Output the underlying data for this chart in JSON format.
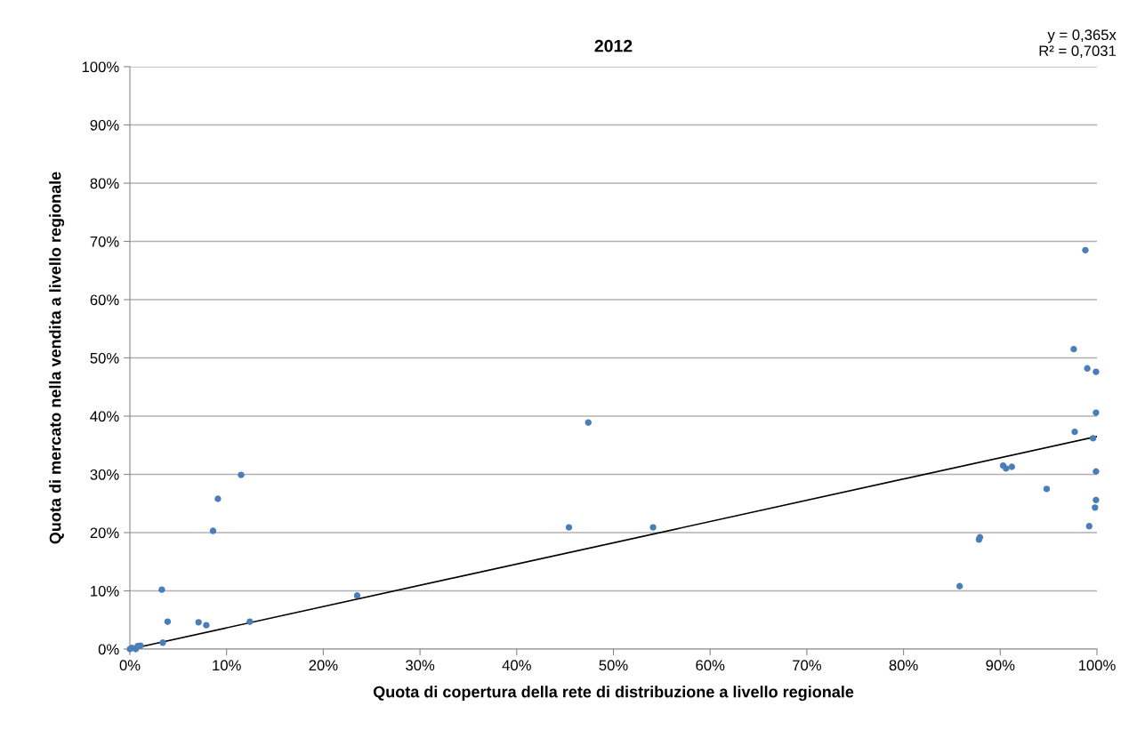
{
  "chart_data": {
    "type": "scatter",
    "title": "2012",
    "xlabel": "Quota di copertura della rete di distribuzione a livello regionale",
    "ylabel": "Quota di mercato nella vendita a livello regionale",
    "series": [
      {
        "color": "#4a7ebb",
        "marker": "circle",
        "x": [
          0,
          0.2,
          0.6,
          0.8,
          1.1,
          3.3,
          3.4,
          3.9,
          7.1,
          7.9,
          8.6,
          9.1,
          11.5,
          12.4,
          23.5,
          45.4,
          47.4,
          54.1,
          85.8,
          87.8,
          87.9,
          90.3,
          90.6,
          91.2,
          94.8,
          97.6,
          97.7,
          98.8,
          99.0,
          99.2,
          99.6,
          99.9,
          99.9,
          99.9,
          99.9,
          99.8
        ],
        "values": [
          0,
          0.2,
          0,
          0.5,
          0.6,
          10.2,
          1.1,
          4.7,
          4.6,
          4.1,
          20.3,
          25.8,
          29.9,
          4.7,
          9.2,
          20.9,
          38.9,
          20.9,
          10.8,
          18.8,
          19.2,
          31.5,
          31.0,
          31.3,
          27.5,
          51.5,
          37.3,
          68.5,
          48.2,
          21.1,
          36.2,
          47.6,
          40.6,
          30.5,
          25.6,
          24.3
        ]
      },
      {
        "type": "line",
        "color": "#000000",
        "marker": "none",
        "line_style": "solid",
        "x": [
          0,
          100
        ],
        "values": [
          0,
          36.5
        ]
      }
    ],
    "annotations": [
      "y = 0,365x\nR² = 0,7031"
    ],
    "xlim": [
      0,
      100
    ],
    "ylim": [
      0,
      100
    ],
    "xticks": [
      {
        "value": 0,
        "label": "0%"
      },
      {
        "value": 10,
        "label": "10%"
      },
      {
        "value": 20,
        "label": "20%"
      },
      {
        "value": 30,
        "label": "30%"
      },
      {
        "value": 40,
        "label": "40%"
      },
      {
        "value": 50,
        "label": "50%"
      },
      {
        "value": 60,
        "label": "60%"
      },
      {
        "value": 70,
        "label": "70%"
      },
      {
        "value": 80,
        "label": "80%"
      },
      {
        "value": 90,
        "label": "90%"
      },
      {
        "value": 100,
        "label": "100%"
      }
    ],
    "yticks": [
      {
        "value": 0,
        "label": "0%"
      },
      {
        "value": 10,
        "label": "10%"
      },
      {
        "value": 20,
        "label": "20%"
      },
      {
        "value": 30,
        "label": "30%"
      },
      {
        "value": 40,
        "label": "40%"
      },
      {
        "value": 50,
        "label": "50%"
      },
      {
        "value": 60,
        "label": "60%"
      },
      {
        "value": 70,
        "label": "70%"
      },
      {
        "value": 80,
        "label": "80%"
      },
      {
        "value": 90,
        "label": "90%"
      },
      {
        "value": 100,
        "label": "100%"
      }
    ],
    "grid": "y",
    "legend": false
  }
}
